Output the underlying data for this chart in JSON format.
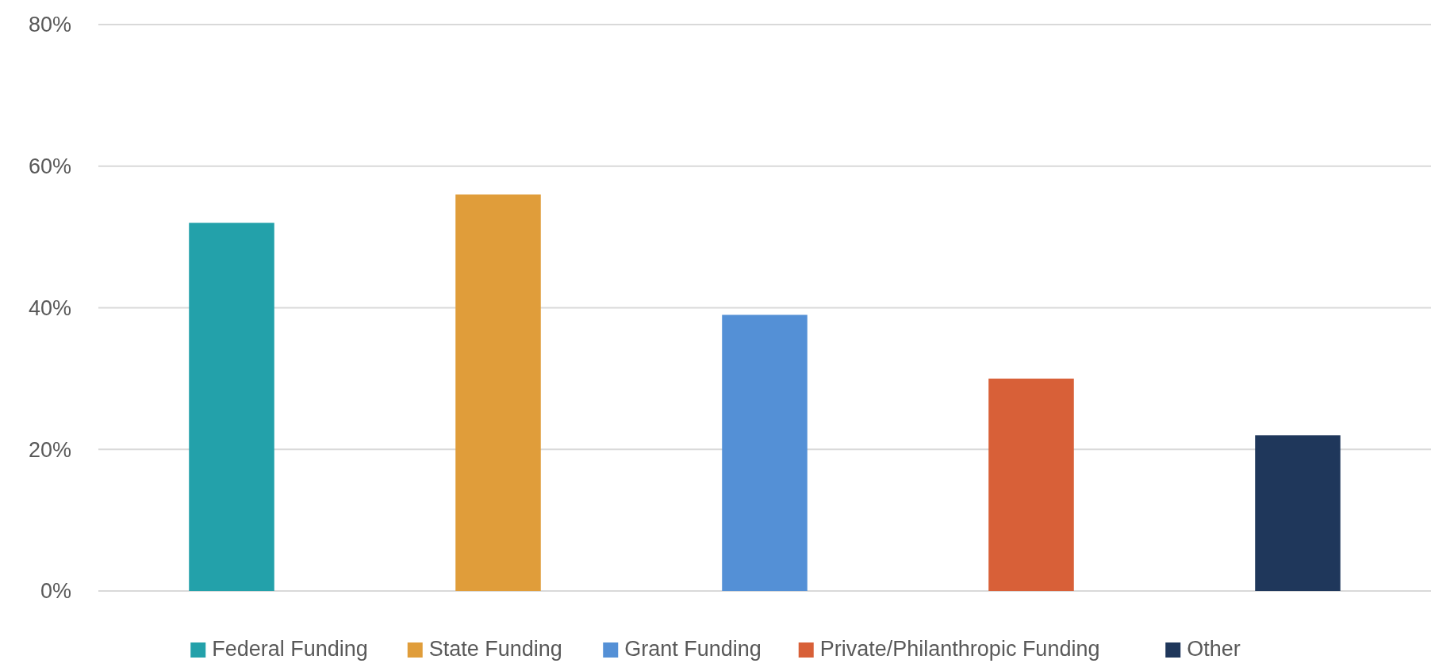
{
  "chart_data": {
    "type": "bar",
    "categories": [
      null
    ],
    "series": [
      {
        "name": "Federal Funding",
        "color": "#23a1aa",
        "values": [
          52
        ]
      },
      {
        "name": "State Funding",
        "color": "#e09d3a",
        "values": [
          56
        ]
      },
      {
        "name": "Grant Funding",
        "color": "#5490d6",
        "values": [
          39
        ]
      },
      {
        "name": "Private/Philanthropic Funding",
        "color": "#d86038",
        "values": [
          30
        ]
      },
      {
        "name": "Other",
        "color": "#1f375b",
        "values": [
          22
        ]
      }
    ],
    "ylim": [
      0,
      80
    ],
    "yticks": [
      {
        "value": 0,
        "label": "0%"
      },
      {
        "value": 20,
        "label": "20%"
      },
      {
        "value": 40,
        "label": "40%"
      },
      {
        "value": 60,
        "label": "60%"
      },
      {
        "value": 80,
        "label": "80%"
      }
    ],
    "grid": "y",
    "legend": "bottom"
  }
}
